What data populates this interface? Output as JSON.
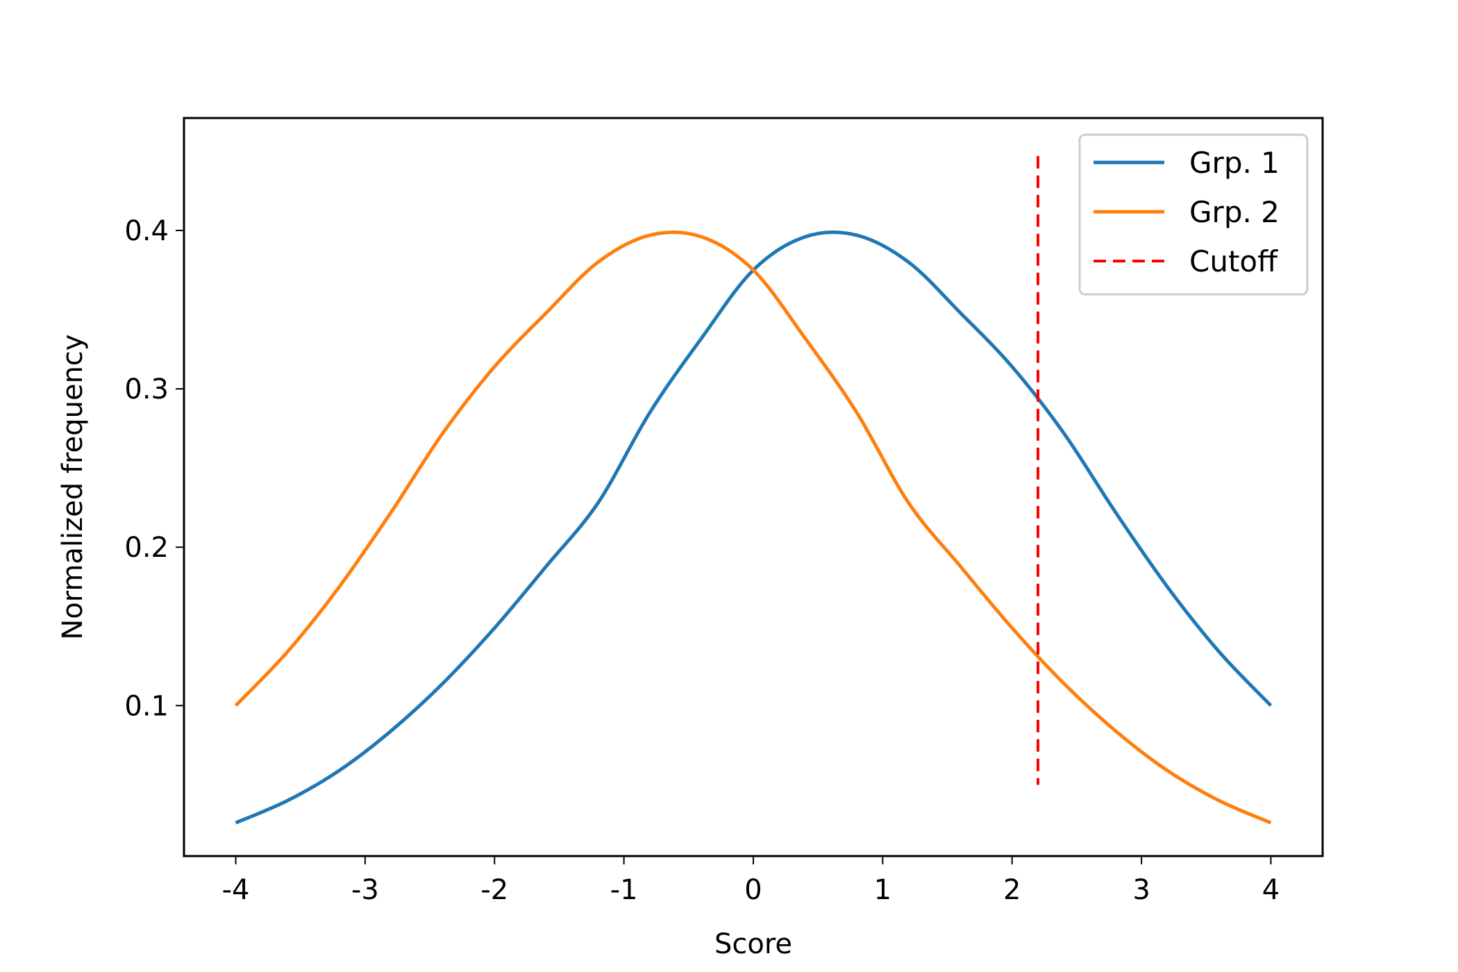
{
  "chart_data": {
    "type": "line",
    "title": "",
    "xlabel": "Score",
    "ylabel": "Normalized frequency",
    "xlim": [
      -4.4,
      4.4
    ],
    "ylim": [
      0.005,
      0.471
    ],
    "xticks": [
      -4,
      -3,
      -2,
      -1,
      0,
      1,
      2,
      3,
      4
    ],
    "xtick_labels": [
      "-4",
      "-3",
      "-2",
      "-1",
      "0",
      "1",
      "2",
      "3",
      "4"
    ],
    "yticks": [
      0.1,
      0.2,
      0.3,
      0.4
    ],
    "ytick_labels": [
      "0.1",
      "0.2",
      "0.3",
      "0.4"
    ],
    "grid": false,
    "legend_position": "top-right",
    "x": [
      -4.0,
      -3.6,
      -3.2,
      -2.8,
      -2.4,
      -2.0,
      -1.6,
      -1.2,
      -0.8,
      -0.4,
      0.0,
      0.4,
      0.8,
      1.2,
      1.6,
      2.0,
      2.4,
      2.8,
      3.2,
      3.6,
      4.0
    ],
    "series": [
      {
        "name": "Grp. 1",
        "color": "#1f77b4",
        "style": "solid",
        "y": [
          0.026,
          0.04,
          0.059,
          0.084,
          0.114,
          0.149,
          0.188,
          0.228,
          0.285,
          0.332,
          0.375,
          0.396,
          0.397,
          0.38,
          0.348,
          0.314,
          0.272,
          0.222,
          0.175,
          0.134,
          0.1
        ]
      },
      {
        "name": "Grp. 2",
        "color": "#ff7f0e",
        "style": "solid",
        "y": [
          0.1,
          0.134,
          0.175,
          0.222,
          0.272,
          0.314,
          0.348,
          0.38,
          0.397,
          0.396,
          0.375,
          0.332,
          0.285,
          0.228,
          0.188,
          0.149,
          0.114,
          0.084,
          0.059,
          0.04,
          0.026
        ]
      }
    ],
    "cutoff": {
      "name": "Cutoff",
      "color": "#ff0000",
      "style": "dashed",
      "x": 2.2,
      "y_range": [
        0.05,
        0.447
      ]
    }
  }
}
